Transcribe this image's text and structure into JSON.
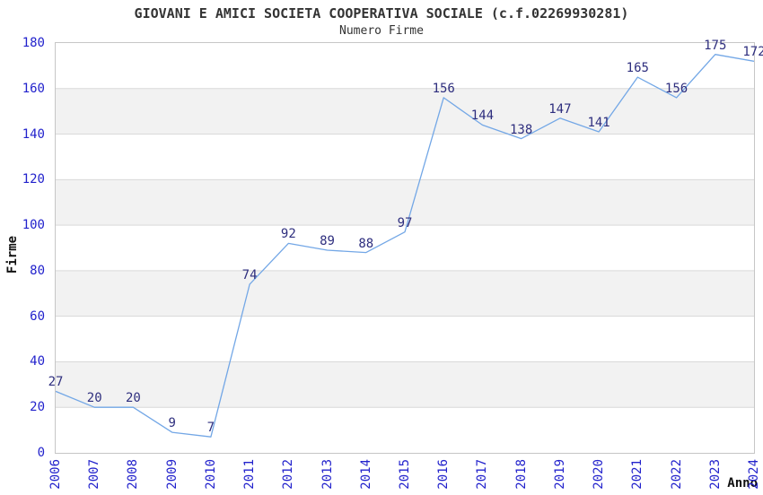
{
  "chart_data": {
    "type": "line",
    "title": "GIOVANI E AMICI SOCIETA COOPERATIVA SOCIALE (c.f.02269930281)",
    "subtitle": "Numero Firme",
    "xlabel": "Anno",
    "ylabel": "Firme",
    "categories": [
      "2006",
      "2007",
      "2008",
      "2009",
      "2010",
      "2011",
      "2012",
      "2013",
      "2014",
      "2015",
      "2016",
      "2017",
      "2018",
      "2019",
      "2020",
      "2021",
      "2022",
      "2023",
      "2024"
    ],
    "values": [
      27,
      20,
      20,
      9,
      7,
      74,
      92,
      89,
      88,
      97,
      156,
      144,
      138,
      147,
      141,
      165,
      156,
      175,
      172
    ],
    "ylim": [
      0,
      180
    ],
    "ytick_step": 20,
    "grid": "horizontal-bands-alternating",
    "legend": "none",
    "data_labels_shown": true,
    "xtick_rotation_deg": -90,
    "colors": {
      "line": "#73a7e6",
      "tick_label": "#2222cc",
      "data_label": "#2e2e7e",
      "band": "#f2f2f2",
      "gridline": "#d9d9d9",
      "plot_border": "#c6c6c6",
      "title_text": "#333333"
    }
  }
}
